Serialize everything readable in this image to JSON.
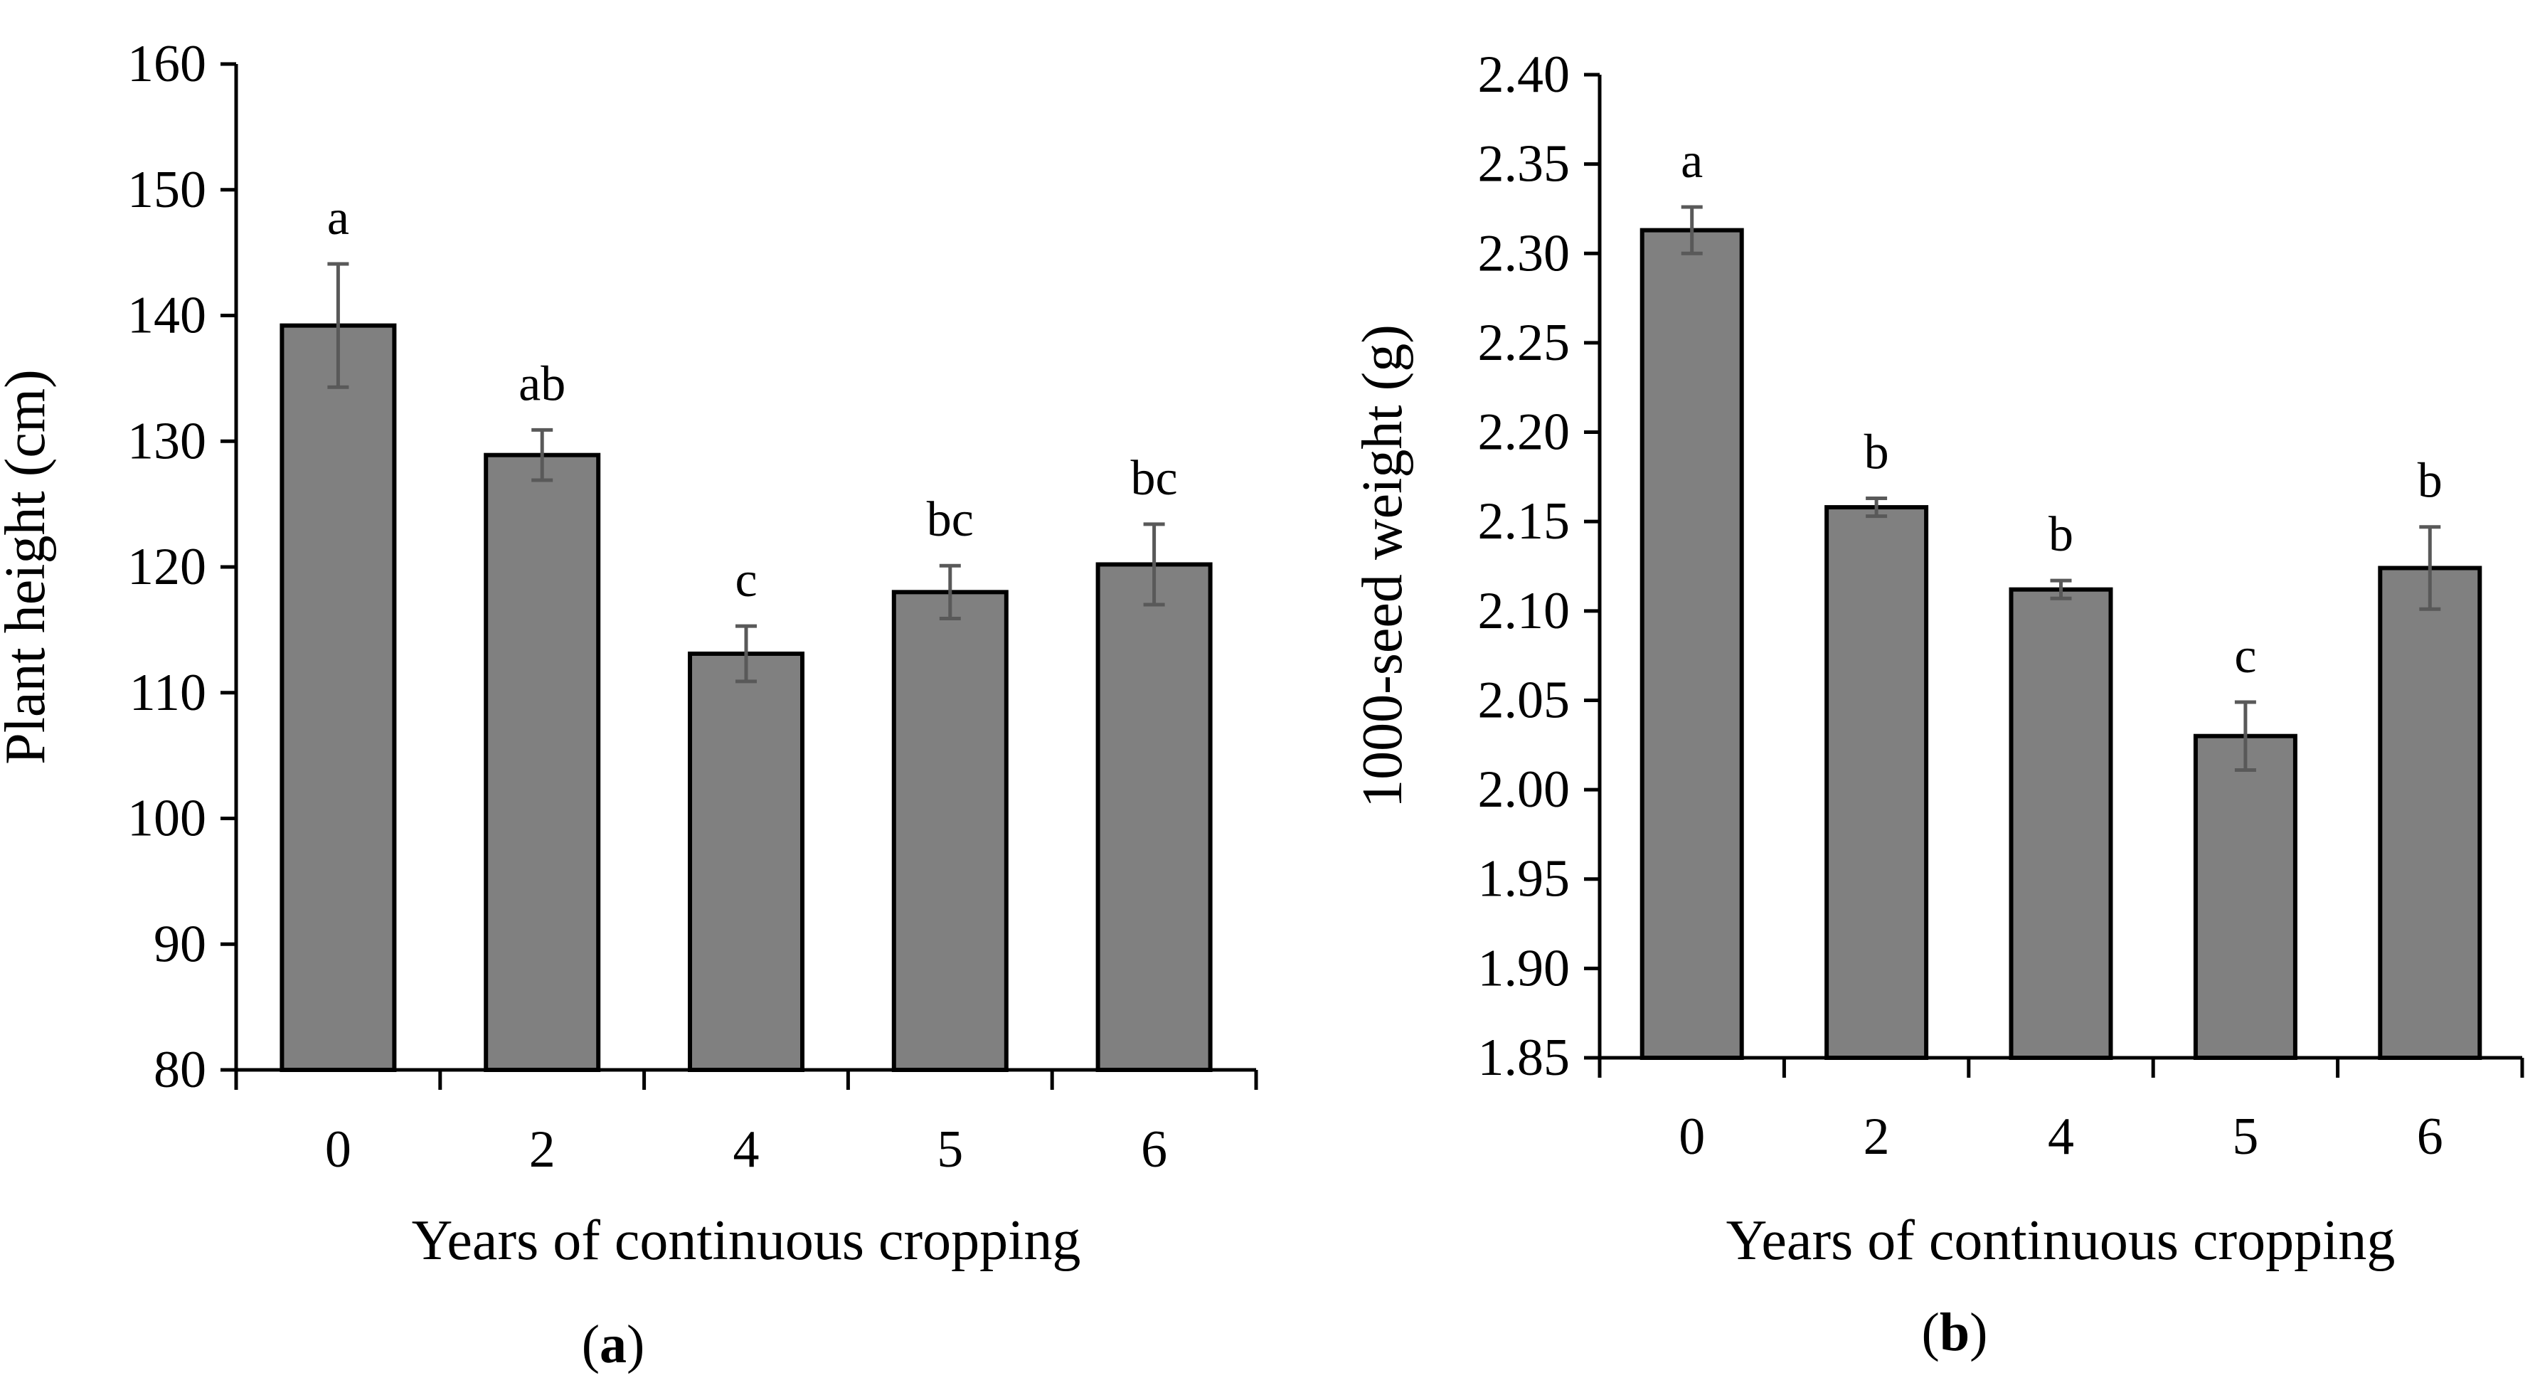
{
  "chart_data": [
    {
      "panel": "a",
      "caption_letter": "a",
      "type": "bar",
      "categories": [
        "0",
        "2",
        "4",
        "5",
        "6"
      ],
      "values": [
        139.2,
        128.9,
        113.1,
        118.0,
        120.2
      ],
      "errors": [
        4.9,
        2.0,
        2.2,
        2.1,
        3.2
      ],
      "significance": [
        "a",
        "ab",
        "c",
        "bc",
        "bc"
      ],
      "xlabel": "Years of continuous cropping",
      "ylabel": "Plant height (cm)",
      "ylim": [
        80,
        160
      ],
      "yticks": [
        "80",
        "90",
        "100",
        "110",
        "120",
        "130",
        "140",
        "150",
        "160"
      ],
      "bar_color": "#808080",
      "error_color": "#595959"
    },
    {
      "panel": "b",
      "caption_letter": "b",
      "type": "bar",
      "categories": [
        "0",
        "2",
        "4",
        "5",
        "6"
      ],
      "values": [
        2.313,
        2.158,
        2.112,
        2.03,
        2.124
      ],
      "errors": [
        0.013,
        0.005,
        0.005,
        0.019,
        0.023
      ],
      "significance": [
        "a",
        "b",
        "b",
        "c",
        "b"
      ],
      "xlabel": "Years of continuous cropping",
      "ylabel": "1000-seed weight (g)",
      "ylim": [
        1.85,
        2.4
      ],
      "yticks": [
        "1.85",
        "1.90",
        "1.95",
        "2.00",
        "2.05",
        "2.10",
        "2.15",
        "2.20",
        "2.25",
        "2.30",
        "2.35",
        "2.40"
      ],
      "bar_color": "#808080",
      "error_color": "#595959"
    }
  ]
}
